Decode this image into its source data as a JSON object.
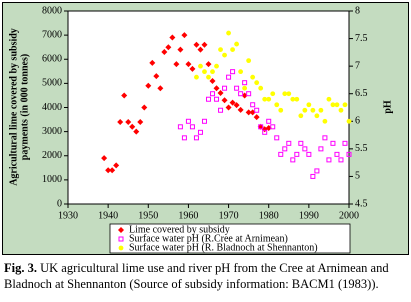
{
  "chart_data": {
    "type": "scatter",
    "ylabel": [
      "Agricultural lime covered by subsidy",
      "payments (in 000 tonnes)"
    ],
    "y2label": "pH",
    "xlim": [
      1930,
      2000
    ],
    "xticks": [
      1930,
      1940,
      1950,
      1960,
      1970,
      1980,
      1990,
      2000
    ],
    "ylim": [
      0,
      8000
    ],
    "yticks": [
      0,
      1000,
      2000,
      3000,
      4000,
      5000,
      6000,
      7000,
      8000
    ],
    "y2lim": [
      4.5,
      8
    ],
    "y2ticks": [
      4.5,
      5,
      5.5,
      6,
      6.5,
      7,
      7.5,
      8
    ],
    "grid": false,
    "series": [
      {
        "name": "Lime covered by subsidy",
        "color": "#ff0000",
        "marker": "diamond",
        "x": [
          1939,
          1940,
          1941,
          1942,
          1943,
          1944,
          1945,
          1946,
          1947,
          1948,
          1949,
          1950,
          1951,
          1952,
          1953,
          1954,
          1955,
          1956,
          1957,
          1958,
          1959,
          1960,
          1961,
          1962,
          1963,
          1964,
          1965,
          1966,
          1967,
          1968,
          1969,
          1970,
          1971,
          1972,
          1973,
          1974,
          1975,
          1976,
          1977,
          1978,
          1979,
          1980
        ],
        "values": [
          1900,
          1400,
          1400,
          1600,
          3400,
          4500,
          3400,
          3200,
          3000,
          3400,
          4000,
          4900,
          5850,
          5300,
          4800,
          6300,
          6500,
          6900,
          5800,
          6400,
          7000,
          5800,
          5600,
          6600,
          6400,
          6600,
          5800,
          5100,
          4800,
          4600,
          4300,
          4000,
          4200,
          4100,
          3900,
          4500,
          3800,
          3800,
          3600,
          3200,
          3100,
          3150
        ]
      },
      {
        "name": "Surface water pH (R.Cree at Arnimean)",
        "color": "#ff00ff",
        "marker": "square",
        "axis": "y2",
        "x": [
          1958,
          1959,
          1960,
          1961,
          1962,
          1963,
          1964,
          1965,
          1966,
          1967,
          1968,
          1969,
          1970,
          1971,
          1972,
          1973,
          1974,
          1975,
          1976,
          1977,
          1978,
          1979,
          1980,
          1981,
          1982,
          1983,
          1984,
          1985,
          1986,
          1987,
          1988,
          1989,
          1990,
          1991,
          1992,
          1993,
          1994,
          1995,
          1996,
          1997,
          1998,
          1999,
          2000
        ],
        "values": [
          5.9,
          5.7,
          6.0,
          5.9,
          5.7,
          5.8,
          6.0,
          6.4,
          6.5,
          6.4,
          6.2,
          6.6,
          6.8,
          6.9,
          6.6,
          6.5,
          6.7,
          6.5,
          6.3,
          6.2,
          5.9,
          5.8,
          6.0,
          5.9,
          5.7,
          5.4,
          5.5,
          5.6,
          5.3,
          5.4,
          5.6,
          5.5,
          5.4,
          5.0,
          5.1,
          5.5,
          5.7,
          5.3,
          5.6,
          5.4,
          5.3,
          5.6,
          5.4
        ]
      },
      {
        "name": "Surface water pH (R. Bladnoch at Shennanton)",
        "color": "#ffff00",
        "marker": "circle",
        "axis": "y2",
        "x": [
          1962,
          1963,
          1964,
          1965,
          1966,
          1967,
          1968,
          1969,
          1970,
          1971,
          1972,
          1973,
          1974,
          1975,
          1976,
          1977,
          1978,
          1979,
          1980,
          1981,
          1982,
          1983,
          1984,
          1985,
          1986,
          1987,
          1988,
          1989,
          1990,
          1991,
          1992,
          1993,
          1994,
          1995,
          1996,
          1997,
          1998,
          1999,
          2000
        ],
        "values": [
          6.8,
          7.0,
          6.9,
          6.8,
          6.9,
          7.0,
          7.3,
          7.2,
          7.6,
          7.3,
          7.4,
          6.9,
          6.6,
          7.1,
          6.8,
          6.7,
          6.6,
          6.4,
          6.4,
          6.5,
          6.3,
          6.2,
          6.5,
          6.5,
          6.4,
          6.4,
          6.1,
          6.2,
          6.3,
          6.2,
          6.1,
          6.2,
          6.0,
          6.4,
          6.3,
          6.3,
          6.2,
          6.3,
          6.0
        ]
      }
    ]
  },
  "caption": {
    "label": "Fig. 3.",
    "text": "UK agricultural lime use and river pH from the Cree at Arnimean and Bladnoch at Shennanton (Source of subsidy information: BACM1 (1983))."
  }
}
